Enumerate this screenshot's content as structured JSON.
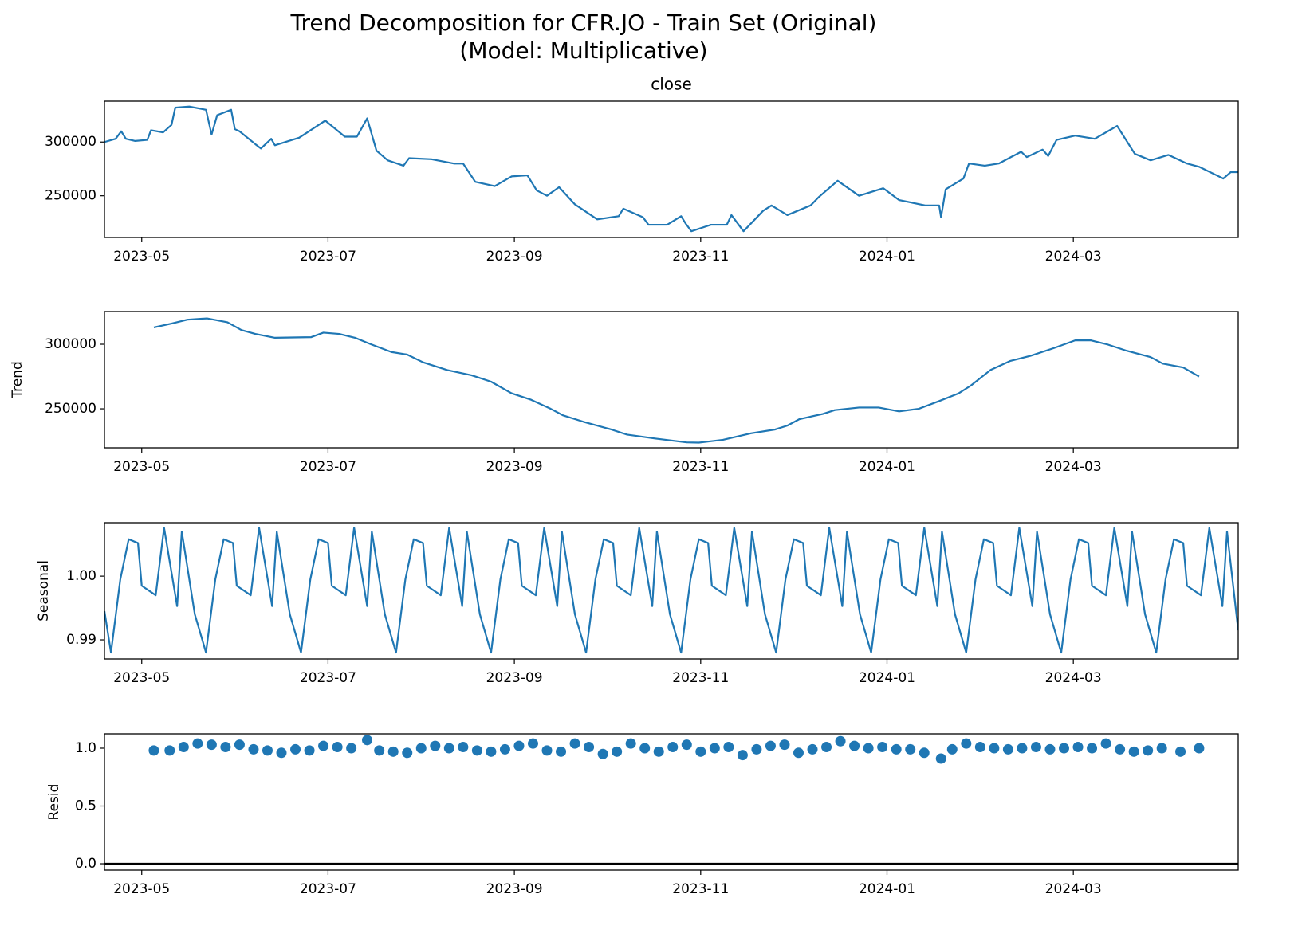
{
  "title": [
    "Trend Decomposition for CFR.JO - Train Set (Original)",
    "(Model: Multiplicative)"
  ],
  "chart_data": [
    {
      "type": "line",
      "title": "close",
      "color": "#1f77b4",
      "x": [
        4.6,
        4.72,
        4.78,
        4.83,
        4.93,
        5.06,
        5.1,
        5.23,
        5.32,
        5.36,
        5.51,
        5.69,
        5.75,
        5.81,
        5.96,
        6.0,
        6.05,
        6.22,
        6.28,
        6.39,
        6.43,
        6.69,
        6.97,
        7.18,
        7.31,
        7.42,
        7.52,
        7.64,
        7.81,
        7.87,
        8.11,
        8.35,
        8.45,
        8.58,
        8.79,
        8.97,
        9.14,
        9.24,
        9.35,
        9.48,
        9.65,
        9.89,
        10.12,
        10.17,
        10.38,
        10.44,
        10.64,
        10.79,
        10.84,
        10.9,
        11.11,
        11.28,
        11.33,
        11.46,
        11.67,
        11.76,
        11.93,
        12.18,
        12.27,
        12.47,
        12.7,
        12.96,
        13.13,
        13.41,
        13.56,
        13.58,
        13.63,
        13.82,
        13.88,
        14.05,
        14.2,
        14.44,
        14.5,
        14.67,
        14.73,
        14.82,
        15.02,
        15.23,
        15.47,
        15.66,
        15.83,
        16.02,
        16.22,
        16.35,
        16.61,
        16.69,
        16.77
      ],
      "values": [
        300000,
        303000,
        310000,
        303000,
        301000,
        302000,
        311000,
        309000,
        316000,
        332000,
        333000,
        330000,
        307000,
        325000,
        330000,
        312000,
        310000,
        298000,
        294000,
        303000,
        297000,
        304000,
        320000,
        305000,
        305000,
        322000,
        292000,
        283000,
        278000,
        285000,
        284000,
        280000,
        280000,
        263000,
        259000,
        268000,
        269000,
        255000,
        250000,
        258000,
        242000,
        228000,
        231000,
        238000,
        230000,
        223000,
        223000,
        231000,
        224000,
        217000,
        223000,
        223000,
        232000,
        217000,
        236000,
        241000,
        232000,
        241000,
        249000,
        264000,
        250000,
        257000,
        246000,
        241000,
        241000,
        230000,
        256000,
        266000,
        280000,
        278000,
        280000,
        291000,
        286000,
        293000,
        287000,
        302000,
        306000,
        303000,
        315000,
        289000,
        283000,
        288000,
        280000,
        277000,
        266000,
        272000,
        272000
      ],
      "xlim": [
        4.6,
        16.77
      ],
      "xticks": [
        {
          "value": 5,
          "label": "2023-05"
        },
        {
          "value": 7,
          "label": "2023-07"
        },
        {
          "value": 9,
          "label": "2023-09"
        },
        {
          "value": 11,
          "label": "2023-11"
        },
        {
          "value": 13,
          "label": "2024-01"
        },
        {
          "value": 15,
          "label": "2024-03"
        }
      ],
      "ylim": [
        211200,
        338000
      ],
      "yticks": [
        250000,
        300000
      ]
    },
    {
      "type": "line",
      "ylabel": "Trend",
      "color": "#1f77b4",
      "x": [
        5.13,
        5.32,
        5.49,
        5.7,
        5.92,
        6.07,
        6.22,
        6.43,
        6.82,
        6.95,
        7.12,
        7.29,
        7.46,
        7.68,
        7.85,
        8.02,
        8.28,
        8.54,
        8.75,
        8.97,
        9.18,
        9.39,
        9.52,
        9.74,
        10.04,
        10.21,
        10.51,
        10.85,
        10.98,
        11.24,
        11.54,
        11.8,
        11.93,
        12.06,
        12.31,
        12.44,
        12.7,
        12.91,
        13.13,
        13.34,
        13.56,
        13.77,
        13.9,
        14.11,
        14.32,
        14.54,
        14.79,
        15.02,
        15.19,
        15.36,
        15.57,
        15.83,
        15.96,
        16.18,
        16.35
      ],
      "values": [
        313000,
        316000,
        319000,
        320000,
        317000,
        311000,
        308000,
        305000,
        305500,
        309000,
        308000,
        305000,
        300000,
        294000,
        292000,
        286000,
        280000,
        276000,
        271000,
        262000,
        257000,
        250000,
        245000,
        240000,
        234000,
        230000,
        227000,
        224000,
        223800,
        226000,
        231000,
        234000,
        237000,
        242000,
        246000,
        249000,
        251000,
        251000,
        248000,
        250000,
        256000,
        262000,
        268000,
        280000,
        287000,
        291000,
        297000,
        303000,
        303000,
        300000,
        295000,
        290000,
        285000,
        282000,
        275000
      ],
      "xlim": [
        4.6,
        16.77
      ],
      "xticks": [
        {
          "value": 5,
          "label": "2023-05"
        },
        {
          "value": 7,
          "label": "2023-07"
        },
        {
          "value": 9,
          "label": "2023-09"
        },
        {
          "value": 11,
          "label": "2023-11"
        },
        {
          "value": 13,
          "label": "2024-01"
        },
        {
          "value": 15,
          "label": "2024-03"
        }
      ],
      "ylim": [
        219800,
        325300
      ],
      "yticks": [
        250000,
        300000
      ]
    },
    {
      "type": "line",
      "ylabel": "Seasonal",
      "color": "#1f77b4",
      "x": [
        4.6,
        4.67,
        4.77,
        4.86,
        4.96,
        5.0,
        5.15,
        5.24,
        5.38,
        5.43,
        5.57,
        5.69,
        5.79,
        5.88,
        5.98,
        6.02,
        6.17,
        6.26,
        6.4,
        6.45,
        6.59,
        6.71,
        6.81,
        6.9,
        7.0,
        7.04,
        7.19,
        7.28,
        7.42,
        7.47,
        7.61,
        7.73,
        7.83,
        7.92,
        8.02,
        8.06,
        8.21,
        8.3,
        8.44,
        8.49,
        8.63,
        8.75,
        8.85,
        8.94,
        9.04,
        9.08,
        9.23,
        9.32,
        9.46,
        9.51,
        9.65,
        9.77,
        9.87,
        9.96,
        10.06,
        10.1,
        10.25,
        10.34,
        10.48,
        10.53,
        10.67,
        10.79,
        10.89,
        10.98,
        11.08,
        11.12,
        11.27,
        11.36,
        11.5,
        11.55,
        11.69,
        11.81,
        11.91,
        12.0,
        12.1,
        12.14,
        12.29,
        12.38,
        12.52,
        12.57,
        12.71,
        12.83,
        12.93,
        13.02,
        13.12,
        13.16,
        13.31,
        13.4,
        13.54,
        13.59,
        13.73,
        13.85,
        13.95,
        14.04,
        14.14,
        14.18,
        14.33,
        14.42,
        14.56,
        14.61,
        14.75,
        14.87,
        14.97,
        15.06,
        15.16,
        15.2,
        15.35,
        15.44,
        15.58,
        15.63,
        15.77,
        15.89,
        15.99,
        16.08,
        16.18,
        16.22,
        16.37,
        16.46,
        16.6,
        16.65,
        16.77
      ],
      "values": [
        0.9945,
        0.988,
        0.9995,
        1.0058,
        1.0052,
        0.9985,
        0.997,
        1.0076,
        0.9953,
        1.007,
        0.994,
        0.988,
        0.9995,
        1.0058,
        1.0052,
        0.9985,
        0.997,
        1.0076,
        0.9953,
        1.007,
        0.994,
        0.988,
        0.9995,
        1.0058,
        1.0052,
        0.9985,
        0.997,
        1.0076,
        0.9953,
        1.007,
        0.994,
        0.988,
        0.9995,
        1.0058,
        1.0052,
        0.9985,
        0.997,
        1.0076,
        0.9953,
        1.007,
        0.994,
        0.988,
        0.9995,
        1.0058,
        1.0052,
        0.9985,
        0.997,
        1.0076,
        0.9953,
        1.007,
        0.994,
        0.988,
        0.9995,
        1.0058,
        1.0052,
        0.9985,
        0.997,
        1.0076,
        0.9953,
        1.007,
        0.994,
        0.988,
        0.9995,
        1.0058,
        1.0052,
        0.9985,
        0.997,
        1.0076,
        0.9953,
        1.007,
        0.994,
        0.988,
        0.9995,
        1.0058,
        1.0052,
        0.9985,
        0.997,
        1.0076,
        0.9953,
        1.007,
        0.994,
        0.988,
        0.9995,
        1.0058,
        1.0052,
        0.9985,
        0.997,
        1.0076,
        0.9953,
        1.007,
        0.994,
        0.988,
        0.9995,
        1.0058,
        1.0052,
        0.9985,
        0.997,
        1.0076,
        0.9953,
        1.007,
        0.994,
        0.988,
        0.9995,
        1.0058,
        1.0052,
        0.9985,
        0.997,
        1.0076,
        0.9953,
        1.007,
        0.994,
        0.988,
        0.9995,
        1.0058,
        1.0052,
        0.9985,
        0.997,
        1.0076,
        0.9953,
        1.007,
        0.9915
      ],
      "xlim": [
        4.6,
        16.77
      ],
      "xticks": [
        {
          "value": 5,
          "label": "2023-05"
        },
        {
          "value": 7,
          "label": "2023-07"
        },
        {
          "value": 9,
          "label": "2023-09"
        },
        {
          "value": 11,
          "label": "2023-11"
        },
        {
          "value": 13,
          "label": "2024-01"
        },
        {
          "value": 15,
          "label": "2024-03"
        }
      ],
      "ylim": [
        0.987,
        1.0084
      ],
      "yticks": [
        {
          "value": 0.99,
          "label": "0.99"
        },
        {
          "value": 1,
          "label": "1.00"
        }
      ]
    },
    {
      "type": "scatter",
      "ylabel": "Resid",
      "color": "#1f77b4",
      "hline": 0,
      "x": [
        5.13,
        5.3,
        5.45,
        5.6,
        5.75,
        5.9,
        6.05,
        6.2,
        6.35,
        6.5,
        6.65,
        6.8,
        6.95,
        7.1,
        7.25,
        7.42,
        7.55,
        7.7,
        7.85,
        8.0,
        8.15,
        8.3,
        8.45,
        8.6,
        8.75,
        8.9,
        9.05,
        9.2,
        9.35,
        9.5,
        9.65,
        9.8,
        9.95,
        10.1,
        10.25,
        10.4,
        10.55,
        10.7,
        10.85,
        11.0,
        11.15,
        11.3,
        11.45,
        11.6,
        11.75,
        11.9,
        12.05,
        12.2,
        12.35,
        12.5,
        12.65,
        12.8,
        12.95,
        13.1,
        13.25,
        13.4,
        13.58,
        13.7,
        13.85,
        14.0,
        14.15,
        14.3,
        14.45,
        14.6,
        14.75,
        14.9,
        15.05,
        15.2,
        15.35,
        15.5,
        15.65,
        15.8,
        15.95,
        16.15,
        16.35
      ],
      "values": [
        0.98,
        0.98,
        1.01,
        1.04,
        1.03,
        1.01,
        1.03,
        0.99,
        0.98,
        0.96,
        0.99,
        0.98,
        1.02,
        1.01,
        1.0,
        1.07,
        0.98,
        0.97,
        0.96,
        1.0,
        1.02,
        1.0,
        1.01,
        0.98,
        0.97,
        0.99,
        1.02,
        1.04,
        0.98,
        0.97,
        1.04,
        1.01,
        0.95,
        0.97,
        1.04,
        1.0,
        0.97,
        1.01,
        1.03,
        0.97,
        1.0,
        1.01,
        0.94,
        0.99,
        1.02,
        1.03,
        0.96,
        0.99,
        1.01,
        1.06,
        1.02,
        1.0,
        1.01,
        0.99,
        0.99,
        0.96,
        0.91,
        0.99,
        1.04,
        1.01,
        1.0,
        0.99,
        1.0,
        1.01,
        0.99,
        1.0,
        1.01,
        1.0,
        1.04,
        0.99,
        0.97,
        0.98,
        1.0,
        0.97,
        1.0
      ],
      "xlim": [
        4.6,
        16.77
      ],
      "xticks": [
        {
          "value": 5,
          "label": "2023-05"
        },
        {
          "value": 7,
          "label": "2023-07"
        },
        {
          "value": 9,
          "label": "2023-09"
        },
        {
          "value": 11,
          "label": "2023-11"
        },
        {
          "value": 13,
          "label": "2024-01"
        },
        {
          "value": 15,
          "label": "2024-03"
        }
      ],
      "ylim": [
        -0.055,
        1.124
      ],
      "yticks": [
        {
          "value": 0,
          "label": "0.0"
        },
        {
          "value": 0.5,
          "label": "0.5"
        },
        {
          "value": 1,
          "label": "1.0"
        }
      ]
    }
  ]
}
